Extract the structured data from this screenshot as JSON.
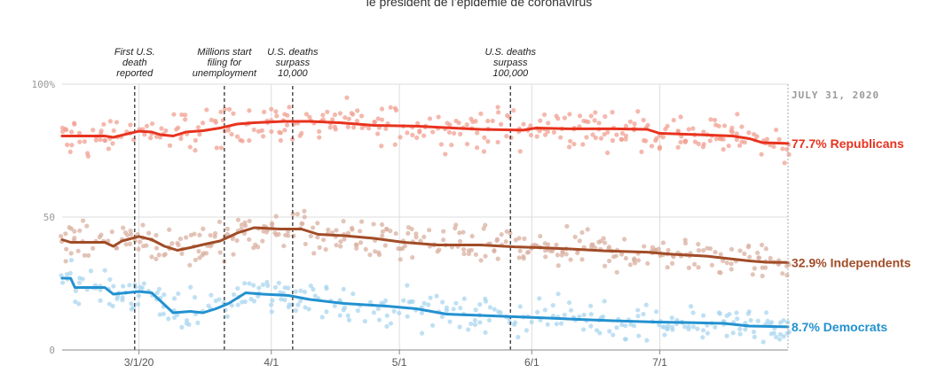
{
  "chart_data": {
    "type": "line",
    "subtitle": "le président de l’épidémie de coronavirus",
    "x_start": "2020-02-12",
    "x_end": "2020-07-31",
    "ylim": [
      0,
      100
    ],
    "yticks": [
      {
        "value": 0,
        "label": "0"
      },
      {
        "value": 50,
        "label": "50"
      },
      {
        "value": 100,
        "label": "100%"
      }
    ],
    "xticks": [
      {
        "date": "2020-03-01",
        "label": "3/1/20"
      },
      {
        "date": "2020-04-01",
        "label": "4/1"
      },
      {
        "date": "2020-05-01",
        "label": "5/1"
      },
      {
        "date": "2020-06-01",
        "label": "6/1"
      },
      {
        "date": "2020-07-01",
        "label": "7/1"
      }
    ],
    "date_label": "JULY 31, 2020",
    "annotations": [
      {
        "date": "2020-02-29",
        "lines": [
          "First U.S.",
          "death",
          "reported"
        ]
      },
      {
        "date": "2020-03-21",
        "lines": [
          "Millions start",
          "filing for",
          "unemployment"
        ]
      },
      {
        "date": "2020-04-06",
        "lines": [
          "U.S. deaths",
          "surpass",
          "10,000"
        ]
      },
      {
        "date": "2020-05-27",
        "lines": [
          "U.S. deaths",
          "surpass",
          "100,000"
        ]
      }
    ],
    "series": [
      {
        "name": "Republicans",
        "label": "77.7% Republicans",
        "color": "#e8321e",
        "dot_color": "#f0a091",
        "points": [
          [
            "2020-02-12",
            80.5
          ],
          [
            "2020-02-22",
            80.5
          ],
          [
            "2020-02-24",
            80
          ],
          [
            "2020-02-26",
            80.8
          ],
          [
            "2020-03-01",
            82.3
          ],
          [
            "2020-03-04",
            82
          ],
          [
            "2020-03-06",
            81
          ],
          [
            "2020-03-09",
            80.5
          ],
          [
            "2020-03-12",
            82
          ],
          [
            "2020-03-16",
            82.5
          ],
          [
            "2020-03-20",
            83.5
          ],
          [
            "2020-03-24",
            85
          ],
          [
            "2020-03-28",
            85.5
          ],
          [
            "2020-04-04",
            86
          ],
          [
            "2020-04-10",
            86
          ],
          [
            "2020-04-17",
            85.5
          ],
          [
            "2020-04-25",
            84.5
          ],
          [
            "2020-05-05",
            84.2
          ],
          [
            "2020-05-10",
            83.8
          ],
          [
            "2020-05-20",
            83
          ],
          [
            "2020-05-30",
            82.7
          ],
          [
            "2020-06-02",
            83.5
          ],
          [
            "2020-06-10",
            83.2
          ],
          [
            "2020-06-20",
            83.2
          ],
          [
            "2020-06-28",
            83
          ],
          [
            "2020-07-01",
            81.5
          ],
          [
            "2020-07-10",
            81
          ],
          [
            "2020-07-18",
            80.5
          ],
          [
            "2020-07-22",
            79.5
          ],
          [
            "2020-07-25",
            78
          ],
          [
            "2020-07-31",
            77.7
          ]
        ]
      },
      {
        "name": "Independents",
        "label": "32.9% Independents",
        "color": "#a14c27",
        "dot_color": "#d9b0a0",
        "points": [
          [
            "2020-02-12",
            41.5
          ],
          [
            "2020-02-14",
            40.5
          ],
          [
            "2020-02-22",
            40.5
          ],
          [
            "2020-02-24",
            39
          ],
          [
            "2020-02-26",
            41
          ],
          [
            "2020-03-01",
            42.7
          ],
          [
            "2020-03-04",
            41.5
          ],
          [
            "2020-03-07",
            39
          ],
          [
            "2020-03-10",
            37.5
          ],
          [
            "2020-03-13",
            38.5
          ],
          [
            "2020-03-17",
            40
          ],
          [
            "2020-03-20",
            41
          ],
          [
            "2020-03-24",
            44
          ],
          [
            "2020-03-28",
            46
          ],
          [
            "2020-04-03",
            45.5
          ],
          [
            "2020-04-08",
            45.5
          ],
          [
            "2020-04-12",
            43.5
          ],
          [
            "2020-04-18",
            43
          ],
          [
            "2020-04-25",
            42
          ],
          [
            "2020-05-02",
            40.5
          ],
          [
            "2020-05-10",
            39.5
          ],
          [
            "2020-05-20",
            39.5
          ],
          [
            "2020-05-28",
            38.8
          ],
          [
            "2020-06-03",
            38.5
          ],
          [
            "2020-06-10",
            38
          ],
          [
            "2020-06-18",
            37.3
          ],
          [
            "2020-06-28",
            36.8
          ],
          [
            "2020-07-04",
            36
          ],
          [
            "2020-07-12",
            35.3
          ],
          [
            "2020-07-18",
            34.2
          ],
          [
            "2020-07-22",
            33.5
          ],
          [
            "2020-07-26",
            33
          ],
          [
            "2020-07-31",
            32.9
          ]
        ]
      },
      {
        "name": "Democrats",
        "label": "8.7% Democrats",
        "color": "#2391d0",
        "dot_color": "#a9d5ef",
        "points": [
          [
            "2020-02-12",
            27
          ],
          [
            "2020-02-14",
            27
          ],
          [
            "2020-02-15",
            23.5
          ],
          [
            "2020-02-22",
            23.5
          ],
          [
            "2020-02-24",
            21
          ],
          [
            "2020-03-01",
            22
          ],
          [
            "2020-03-04",
            21.5
          ],
          [
            "2020-03-07",
            17
          ],
          [
            "2020-03-09",
            14
          ],
          [
            "2020-03-13",
            14.5
          ],
          [
            "2020-03-16",
            14
          ],
          [
            "2020-03-19",
            15.5
          ],
          [
            "2020-03-22",
            17.5
          ],
          [
            "2020-03-26",
            21.5
          ],
          [
            "2020-03-30",
            21
          ],
          [
            "2020-04-05",
            20.5
          ],
          [
            "2020-04-10",
            19
          ],
          [
            "2020-04-18",
            17.5
          ],
          [
            "2020-04-28",
            16.5
          ],
          [
            "2020-05-05",
            15.5
          ],
          [
            "2020-05-12",
            13.5
          ],
          [
            "2020-05-20",
            13
          ],
          [
            "2020-05-28",
            12.5
          ],
          [
            "2020-06-05",
            12
          ],
          [
            "2020-06-12",
            11.5
          ],
          [
            "2020-06-20",
            11
          ],
          [
            "2020-06-30",
            10.5
          ],
          [
            "2020-07-08",
            10.3
          ],
          [
            "2020-07-16",
            10
          ],
          [
            "2020-07-22",
            9
          ],
          [
            "2020-07-31",
            8.7
          ]
        ]
      }
    ]
  }
}
